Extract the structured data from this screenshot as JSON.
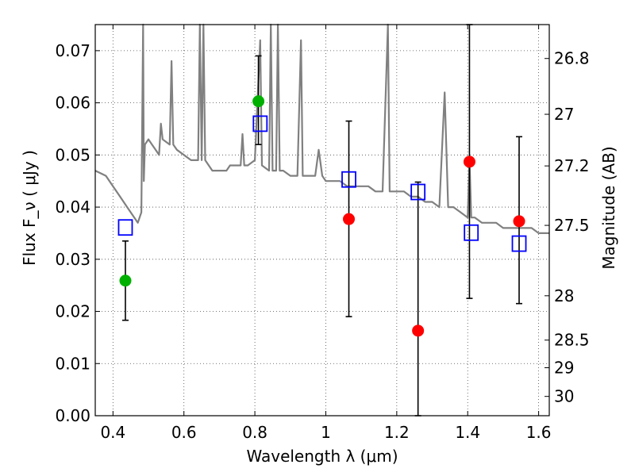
{
  "chart_data": {
    "type": "scatter",
    "xlabel": "Wavelength  λ (μm)",
    "ylabel": "Flux  F_ν  ( μJy )",
    "ylabel_right": "Magnitude (AB)",
    "xlim": [
      0.35,
      1.63
    ],
    "ylim": [
      0.0,
      0.075
    ],
    "grid": true,
    "x_ticks": [
      0.4,
      0.6,
      0.8,
      1.0,
      1.2,
      1.4,
      1.6
    ],
    "x_tick_labels": [
      "0.4",
      "0.6",
      "0.8",
      "1",
      "1.2",
      "1.4",
      "1.6"
    ],
    "y_ticks": [
      0.0,
      0.01,
      0.02,
      0.03,
      0.04,
      0.05,
      0.06,
      0.07
    ],
    "y_tick_labels": [
      "0.00",
      "0.01",
      "0.02",
      "0.03",
      "0.04",
      "0.05",
      "0.06",
      "0.07"
    ],
    "right_ticks": [
      {
        "flux": 0.0685,
        "label": "26.8"
      },
      {
        "flux": 0.0578,
        "label": "27"
      },
      {
        "flux": 0.0479,
        "label": "27.2"
      },
      {
        "flux": 0.0365,
        "label": "27.5"
      },
      {
        "flux": 0.023,
        "label": "28"
      },
      {
        "flux": 0.0145,
        "label": "28.5"
      },
      {
        "flux": 0.0092,
        "label": "29"
      },
      {
        "flux": 0.0037,
        "label": "30"
      }
    ],
    "series": [
      {
        "name": "model spectrum",
        "kind": "line",
        "color": "#808080",
        "points": [
          [
            0.35,
            0.047
          ],
          [
            0.38,
            0.046
          ],
          [
            0.4,
            0.044
          ],
          [
            0.42,
            0.042
          ],
          [
            0.44,
            0.04
          ],
          [
            0.46,
            0.038
          ],
          [
            0.47,
            0.037
          ],
          [
            0.48,
            0.039
          ],
          [
            0.485,
            0.075
          ],
          [
            0.487,
            0.045
          ],
          [
            0.49,
            0.052
          ],
          [
            0.5,
            0.053
          ],
          [
            0.51,
            0.052
          ],
          [
            0.52,
            0.051
          ],
          [
            0.53,
            0.05
          ],
          [
            0.535,
            0.056
          ],
          [
            0.54,
            0.053
          ],
          [
            0.56,
            0.052
          ],
          [
            0.565,
            0.068
          ],
          [
            0.57,
            0.052
          ],
          [
            0.58,
            0.051
          ],
          [
            0.6,
            0.05
          ],
          [
            0.62,
            0.049
          ],
          [
            0.64,
            0.049
          ],
          [
            0.645,
            0.075
          ],
          [
            0.65,
            0.049
          ],
          [
            0.655,
            0.075
          ],
          [
            0.66,
            0.049
          ],
          [
            0.67,
            0.048
          ],
          [
            0.68,
            0.047
          ],
          [
            0.7,
            0.047
          ],
          [
            0.72,
            0.047
          ],
          [
            0.73,
            0.048
          ],
          [
            0.74,
            0.048
          ],
          [
            0.75,
            0.048
          ],
          [
            0.76,
            0.048
          ],
          [
            0.765,
            0.054
          ],
          [
            0.77,
            0.048
          ],
          [
            0.78,
            0.048
          ],
          [
            0.8,
            0.049
          ],
          [
            0.815,
            0.072
          ],
          [
            0.82,
            0.048
          ],
          [
            0.84,
            0.047
          ],
          [
            0.845,
            0.075
          ],
          [
            0.85,
            0.047
          ],
          [
            0.86,
            0.047
          ],
          [
            0.865,
            0.075
          ],
          [
            0.87,
            0.047
          ],
          [
            0.88,
            0.047
          ],
          [
            0.9,
            0.046
          ],
          [
            0.92,
            0.046
          ],
          [
            0.93,
            0.072
          ],
          [
            0.935,
            0.046
          ],
          [
            0.95,
            0.046
          ],
          [
            0.97,
            0.046
          ],
          [
            0.98,
            0.051
          ],
          [
            0.99,
            0.046
          ],
          [
            1.0,
            0.045
          ],
          [
            1.02,
            0.045
          ],
          [
            1.04,
            0.045
          ],
          [
            1.06,
            0.044
          ],
          [
            1.08,
            0.044
          ],
          [
            1.1,
            0.044
          ],
          [
            1.12,
            0.044
          ],
          [
            1.14,
            0.043
          ],
          [
            1.16,
            0.043
          ],
          [
            1.175,
            0.075
          ],
          [
            1.18,
            0.043
          ],
          [
            1.2,
            0.043
          ],
          [
            1.22,
            0.043
          ],
          [
            1.24,
            0.042
          ],
          [
            1.26,
            0.042
          ],
          [
            1.28,
            0.041
          ],
          [
            1.3,
            0.041
          ],
          [
            1.32,
            0.04
          ],
          [
            1.335,
            0.062
          ],
          [
            1.345,
            0.04
          ],
          [
            1.36,
            0.04
          ],
          [
            1.38,
            0.039
          ],
          [
            1.4,
            0.038
          ],
          [
            1.405,
            0.049
          ],
          [
            1.41,
            0.038
          ],
          [
            1.42,
            0.038
          ],
          [
            1.44,
            0.037
          ],
          [
            1.46,
            0.037
          ],
          [
            1.48,
            0.037
          ],
          [
            1.5,
            0.036
          ],
          [
            1.52,
            0.036
          ],
          [
            1.54,
            0.036
          ],
          [
            1.56,
            0.036
          ],
          [
            1.58,
            0.036
          ],
          [
            1.6,
            0.035
          ],
          [
            1.63,
            0.035
          ]
        ]
      },
      {
        "name": "observed (green)",
        "kind": "marker",
        "marker": "circle",
        "color": "#00b000",
        "points": [
          {
            "x": 0.435,
            "y": 0.0259,
            "ylow": 0.0183,
            "yhigh": 0.0335
          },
          {
            "x": 0.81,
            "y": 0.0603,
            "ylow": 0.052,
            "yhigh": 0.069
          }
        ]
      },
      {
        "name": "observed (red)",
        "kind": "marker",
        "marker": "circle",
        "color": "#ff0000",
        "points": [
          {
            "x": 1.065,
            "y": 0.0377,
            "ylow": 0.019,
            "yhigh": 0.0565
          },
          {
            "x": 1.26,
            "y": 0.0163,
            "ylow": 0.0,
            "yhigh": 0.0448
          },
          {
            "x": 1.405,
            "y": 0.0487,
            "ylow": 0.0225,
            "yhigh": 0.075
          },
          {
            "x": 1.545,
            "y": 0.0373,
            "ylow": 0.0215,
            "yhigh": 0.0535
          }
        ]
      },
      {
        "name": "model photometry",
        "kind": "marker",
        "marker": "square",
        "color": "#0000ff",
        "points": [
          {
            "x": 0.435,
            "y": 0.0361
          },
          {
            "x": 0.815,
            "y": 0.056
          },
          {
            "x": 1.065,
            "y": 0.0453
          },
          {
            "x": 1.26,
            "y": 0.0429
          },
          {
            "x": 1.41,
            "y": 0.0351
          },
          {
            "x": 1.545,
            "y": 0.033
          }
        ]
      }
    ]
  }
}
